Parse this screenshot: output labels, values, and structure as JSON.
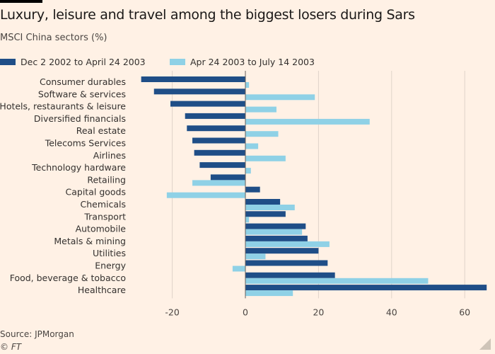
{
  "header": {
    "title": "Luxury, leisure and travel among the biggest losers during Sars",
    "subtitle": "MSCI China sectors (%)"
  },
  "footer": {
    "source": "Source: JPMorgan",
    "copyright": "© FT"
  },
  "colors": {
    "background": "#fff1e5",
    "series1": "#1f4e87",
    "series2": "#8fd1e6",
    "gridline": "#dfd4c9",
    "zeroline": "#66605c"
  },
  "chart_data": {
    "type": "bar",
    "orientation": "horizontal",
    "title": "Luxury, leisure and travel among the biggest losers during Sars",
    "subtitle": "MSCI China sectors (%)",
    "categories": [
      "Consumer durables",
      "Software & services",
      "Hotels, restaurants & leisure",
      "Diversified financials",
      "Real estate",
      "Telecoms Services",
      "Airlines",
      "Technology hardware",
      "Retailing",
      "Capital goods",
      "Chemicals",
      "Transport",
      "Automobile",
      "Metals & mining",
      "Utilities",
      "Energy",
      "Food, beverage & tobacco",
      "Healthcare"
    ],
    "series": [
      {
        "name": "Dec 2 2002 to April 24 2003",
        "values": [
          -28.5,
          -25,
          -20.5,
          -16.5,
          -16,
          -14.5,
          -14,
          -12.5,
          -9.5,
          4,
          9.5,
          11,
          16.5,
          17,
          20,
          22.5,
          24.5,
          66
        ]
      },
      {
        "name": "Apr 24 2003 to July 14 2003",
        "values": [
          1,
          19,
          8.5,
          34,
          9,
          3.5,
          11,
          1.5,
          -14.5,
          -21.5,
          13.5,
          1,
          15.5,
          23,
          5.5,
          -3.5,
          50,
          13
        ]
      }
    ],
    "xticks": [
      -20,
      0,
      20,
      40,
      60
    ],
    "xlim": [
      -29,
      65
    ],
    "xlabel": "",
    "ylabel": "",
    "grid": true,
    "legend_position": "top-left"
  }
}
